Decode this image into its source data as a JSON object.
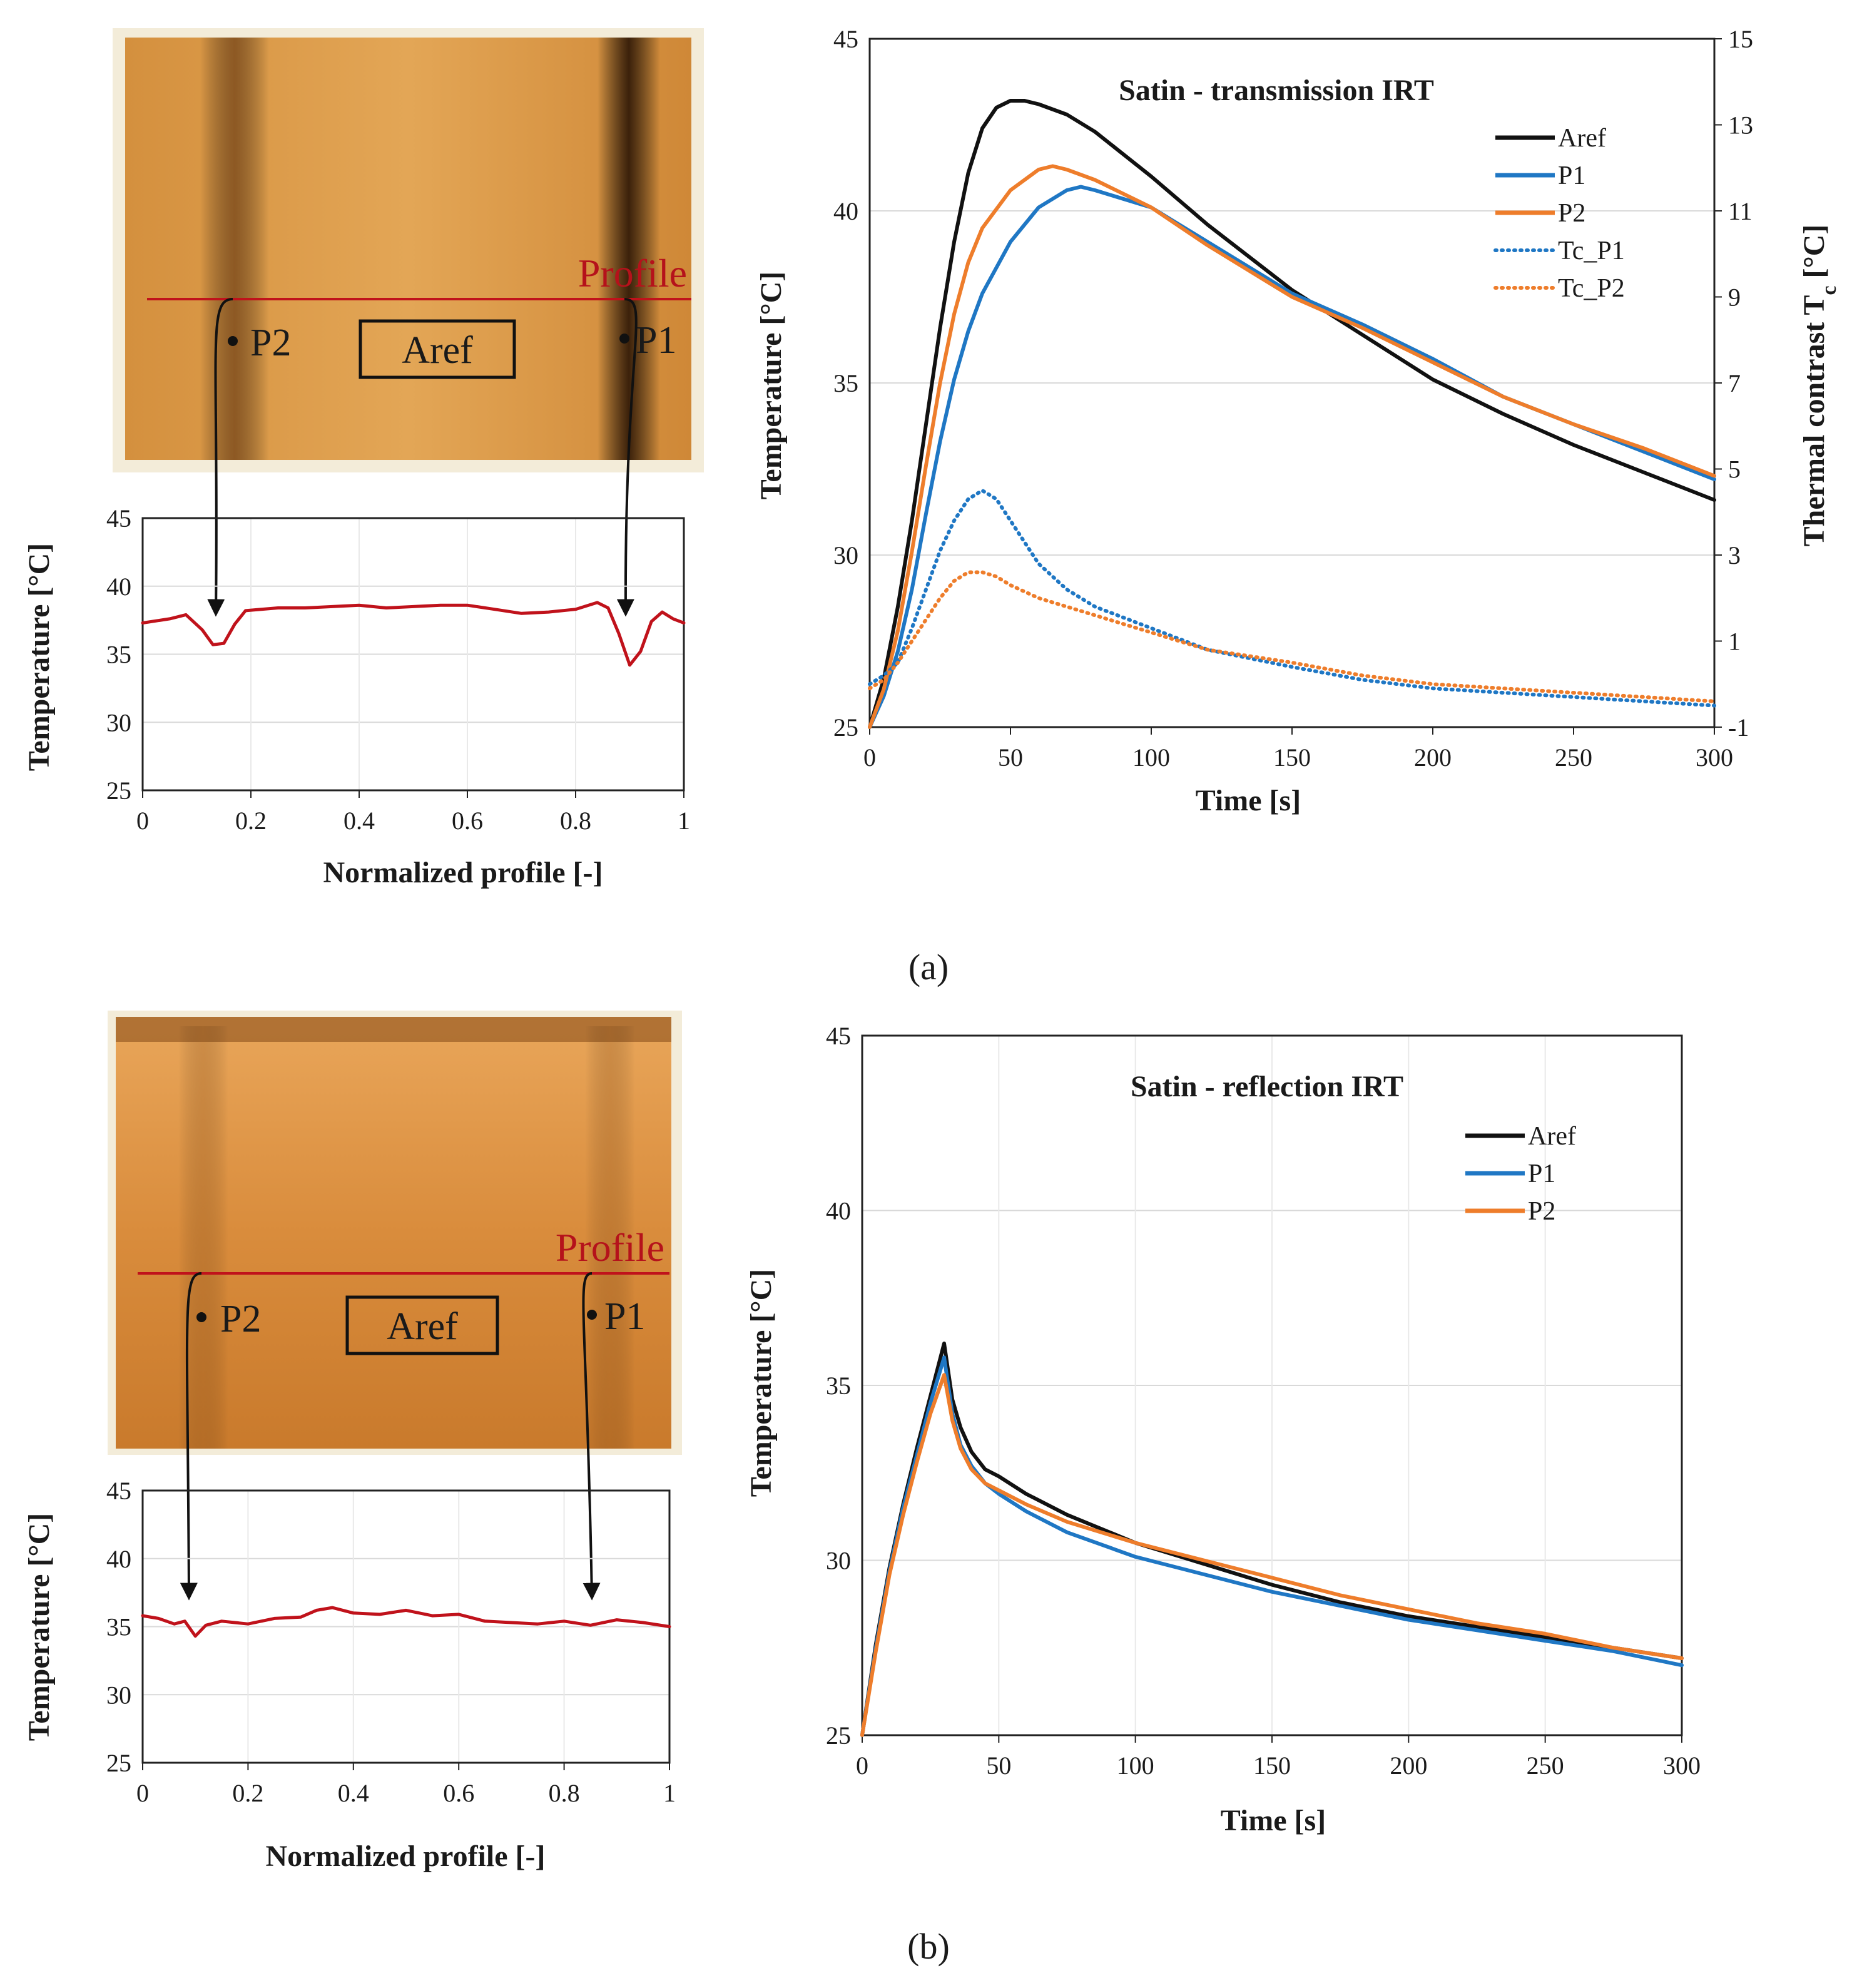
{
  "colors": {
    "aref": "#111111",
    "p1": "#1f77c4",
    "p2": "#ee7d2b",
    "profile": "#c0121b",
    "thermo_base": "#d98a35",
    "grid": "#d9d9d9"
  },
  "panel_a": {
    "label": "(a)",
    "thermo": {
      "profile_label": "Profile",
      "p1": "P1",
      "p2": "P2",
      "aref": "Aref"
    },
    "chart_data": {
      "type": "line",
      "title": "Satin - transmission IRT",
      "xlabel": "Time [s]",
      "ylabel": "Temperature [°C]",
      "y2label": "Thermal contrast T_c [°C]",
      "xlim": [
        0,
        300
      ],
      "ylim": [
        25,
        45
      ],
      "y2lim": [
        -1,
        15
      ],
      "xticks": [
        "0",
        "50",
        "100",
        "150",
        "200",
        "250",
        "300"
      ],
      "yticks": [
        "25",
        "30",
        "35",
        "40",
        "45"
      ],
      "y2ticks": [
        "-1",
        "1",
        "3",
        "5",
        "7",
        "9",
        "11",
        "13",
        "15"
      ],
      "grid": true,
      "legend_position": "top-right",
      "series": [
        {
          "name": "Aref",
          "axis": "left",
          "style": "solid",
          "color_key": "aref",
          "x": [
            0,
            5,
            10,
            15,
            20,
            25,
            30,
            35,
            40,
            45,
            50,
            55,
            60,
            70,
            80,
            100,
            120,
            150,
            175,
            200,
            225,
            250,
            275,
            300
          ],
          "y": [
            25,
            26.4,
            28.5,
            31,
            33.8,
            36.6,
            39.1,
            41.1,
            42.4,
            43,
            43.2,
            43.2,
            43.1,
            42.8,
            42.3,
            41,
            39.6,
            37.7,
            36.4,
            35.1,
            34.1,
            33.2,
            32.4,
            31.6
          ]
        },
        {
          "name": "P1",
          "axis": "left",
          "style": "solid",
          "color_key": "p1",
          "x": [
            0,
            5,
            10,
            15,
            20,
            25,
            30,
            35,
            40,
            50,
            60,
            70,
            75,
            80,
            100,
            120,
            150,
            175,
            200,
            225,
            250,
            275,
            300
          ],
          "y": [
            25,
            25.9,
            27.2,
            29,
            31.2,
            33.3,
            35.1,
            36.5,
            37.6,
            39.1,
            40.1,
            40.6,
            40.7,
            40.6,
            40.1,
            39.1,
            37.6,
            36.7,
            35.7,
            34.6,
            33.8,
            33,
            32.2
          ]
        },
        {
          "name": "P2",
          "axis": "left",
          "style": "solid",
          "color_key": "p2",
          "x": [
            0,
            5,
            10,
            15,
            20,
            25,
            30,
            35,
            40,
            50,
            60,
            65,
            70,
            80,
            100,
            120,
            150,
            175,
            200,
            225,
            250,
            275,
            300
          ],
          "y": [
            25,
            26.1,
            27.8,
            30.1,
            32.6,
            35,
            37,
            38.5,
            39.5,
            40.6,
            41.2,
            41.3,
            41.2,
            40.9,
            40.1,
            39,
            37.5,
            36.6,
            35.6,
            34.6,
            33.8,
            33.1,
            32.3
          ]
        },
        {
          "name": "Tc_P1",
          "axis": "right",
          "style": "dotted",
          "color_key": "p1",
          "x": [
            0,
            5,
            10,
            15,
            20,
            25,
            30,
            35,
            40,
            45,
            50,
            55,
            60,
            70,
            80,
            100,
            120,
            150,
            175,
            200,
            225,
            250,
            275,
            300
          ],
          "y": [
            0,
            0.2,
            0.5,
            1.3,
            2.2,
            3.1,
            3.8,
            4.3,
            4.5,
            4.3,
            3.8,
            3.3,
            2.8,
            2.2,
            1.8,
            1.3,
            0.8,
            0.4,
            0.1,
            -0.1,
            -0.2,
            -0.3,
            -0.4,
            -0.5
          ]
        },
        {
          "name": "Tc_P2",
          "axis": "right",
          "style": "dotted",
          "color_key": "p2",
          "x": [
            0,
            5,
            10,
            15,
            20,
            25,
            30,
            35,
            40,
            45,
            50,
            60,
            70,
            80,
            100,
            120,
            150,
            175,
            200,
            225,
            250,
            275,
            300
          ],
          "y": [
            -0.1,
            0.1,
            0.5,
            1,
            1.5,
            2,
            2.4,
            2.6,
            2.6,
            2.5,
            2.3,
            2,
            1.8,
            1.6,
            1.2,
            0.8,
            0.5,
            0.2,
            0,
            -0.1,
            -0.2,
            -0.3,
            -0.4
          ]
        }
      ]
    },
    "profile_chart": {
      "type": "line",
      "xlabel": "Normalized profile [-]",
      "ylabel": "Temperature [°C]",
      "xlim": [
        0,
        1
      ],
      "ylim": [
        25,
        45
      ],
      "xticks": [
        "0",
        "0.2",
        "0.4",
        "0.6",
        "0.8",
        "1"
      ],
      "yticks": [
        "25",
        "30",
        "35",
        "40",
        "45"
      ],
      "series": [
        {
          "name": "Profile",
          "color_key": "profile",
          "x": [
            0,
            0.05,
            0.08,
            0.11,
            0.13,
            0.15,
            0.17,
            0.19,
            0.25,
            0.3,
            0.35,
            0.4,
            0.45,
            0.5,
            0.55,
            0.6,
            0.65,
            0.7,
            0.75,
            0.8,
            0.84,
            0.86,
            0.88,
            0.9,
            0.92,
            0.94,
            0.96,
            0.98,
            1
          ],
          "y": [
            37.3,
            37.6,
            37.9,
            36.8,
            35.7,
            35.8,
            37.2,
            38.2,
            38.4,
            38.4,
            38.5,
            38.6,
            38.4,
            38.5,
            38.6,
            38.6,
            38.3,
            38,
            38.1,
            38.3,
            38.8,
            38.4,
            36.5,
            34.2,
            35.2,
            37.4,
            38.1,
            37.6,
            37.3
          ]
        }
      ]
    }
  },
  "panel_b": {
    "label": "(b)",
    "thermo": {
      "profile_label": "Profile",
      "p1": "P1",
      "p2": "P2",
      "aref": "Aref"
    },
    "chart_data": {
      "type": "line",
      "title": "Satin - reflection IRT",
      "xlabel": "Time [s]",
      "ylabel": "Temperature [°C]",
      "xlim": [
        0,
        300
      ],
      "ylim": [
        25,
        45
      ],
      "xticks": [
        "0",
        "50",
        "100",
        "150",
        "200",
        "250",
        "300"
      ],
      "yticks": [
        "25",
        "30",
        "35",
        "40",
        "45"
      ],
      "grid": true,
      "legend_position": "top-right",
      "series": [
        {
          "name": "Aref",
          "style": "solid",
          "color_key": "aref",
          "x": [
            0,
            5,
            10,
            15,
            20,
            25,
            30,
            33,
            36,
            40,
            45,
            50,
            60,
            75,
            100,
            125,
            150,
            175,
            200,
            225,
            250,
            275,
            300
          ],
          "y": [
            25,
            27.6,
            29.8,
            31.6,
            33.2,
            34.7,
            36.2,
            34.6,
            33.8,
            33.1,
            32.6,
            32.4,
            31.9,
            31.3,
            30.5,
            29.9,
            29.3,
            28.8,
            28.4,
            28.1,
            27.8,
            27.5,
            27.2
          ]
        },
        {
          "name": "P1",
          "style": "solid",
          "color_key": "p1",
          "x": [
            0,
            5,
            10,
            15,
            20,
            25,
            30,
            33,
            36,
            40,
            45,
            50,
            60,
            75,
            100,
            125,
            150,
            175,
            200,
            225,
            250,
            275,
            300
          ],
          "y": [
            25,
            27.5,
            29.7,
            31.5,
            33,
            34.5,
            35.8,
            34.2,
            33.3,
            32.7,
            32.2,
            31.9,
            31.4,
            30.8,
            30.1,
            29.6,
            29.1,
            28.7,
            28.3,
            28,
            27.7,
            27.4,
            27
          ]
        },
        {
          "name": "P2",
          "style": "solid",
          "color_key": "p2",
          "x": [
            0,
            5,
            10,
            15,
            20,
            25,
            30,
            33,
            36,
            40,
            45,
            50,
            60,
            75,
            100,
            125,
            150,
            175,
            200,
            225,
            250,
            275,
            300
          ],
          "y": [
            25,
            27.4,
            29.6,
            31.3,
            32.8,
            34.2,
            35.3,
            34,
            33.2,
            32.6,
            32.2,
            32,
            31.6,
            31.1,
            30.5,
            30,
            29.5,
            29,
            28.6,
            28.2,
            27.9,
            27.5,
            27.2
          ]
        }
      ]
    },
    "profile_chart": {
      "type": "line",
      "xlabel": "Normalized profile [-]",
      "ylabel": "Temperature [°C]",
      "xlim": [
        0,
        1
      ],
      "ylim": [
        25,
        45
      ],
      "xticks": [
        "0",
        "0.2",
        "0.4",
        "0.6",
        "0.8",
        "1"
      ],
      "yticks": [
        "25",
        "30",
        "35",
        "40",
        "45"
      ],
      "series": [
        {
          "name": "Profile",
          "color_key": "profile",
          "x": [
            0,
            0.03,
            0.06,
            0.08,
            0.1,
            0.12,
            0.15,
            0.2,
            0.25,
            0.3,
            0.33,
            0.36,
            0.4,
            0.45,
            0.5,
            0.55,
            0.6,
            0.65,
            0.7,
            0.75,
            0.8,
            0.85,
            0.9,
            0.95,
            1
          ],
          "y": [
            35.8,
            35.6,
            35.2,
            35.4,
            34.3,
            35.1,
            35.4,
            35.2,
            35.6,
            35.7,
            36.2,
            36.4,
            36,
            35.9,
            36.2,
            35.8,
            35.9,
            35.4,
            35.3,
            35.2,
            35.4,
            35.1,
            35.5,
            35.3,
            35
          ]
        }
      ]
    }
  }
}
